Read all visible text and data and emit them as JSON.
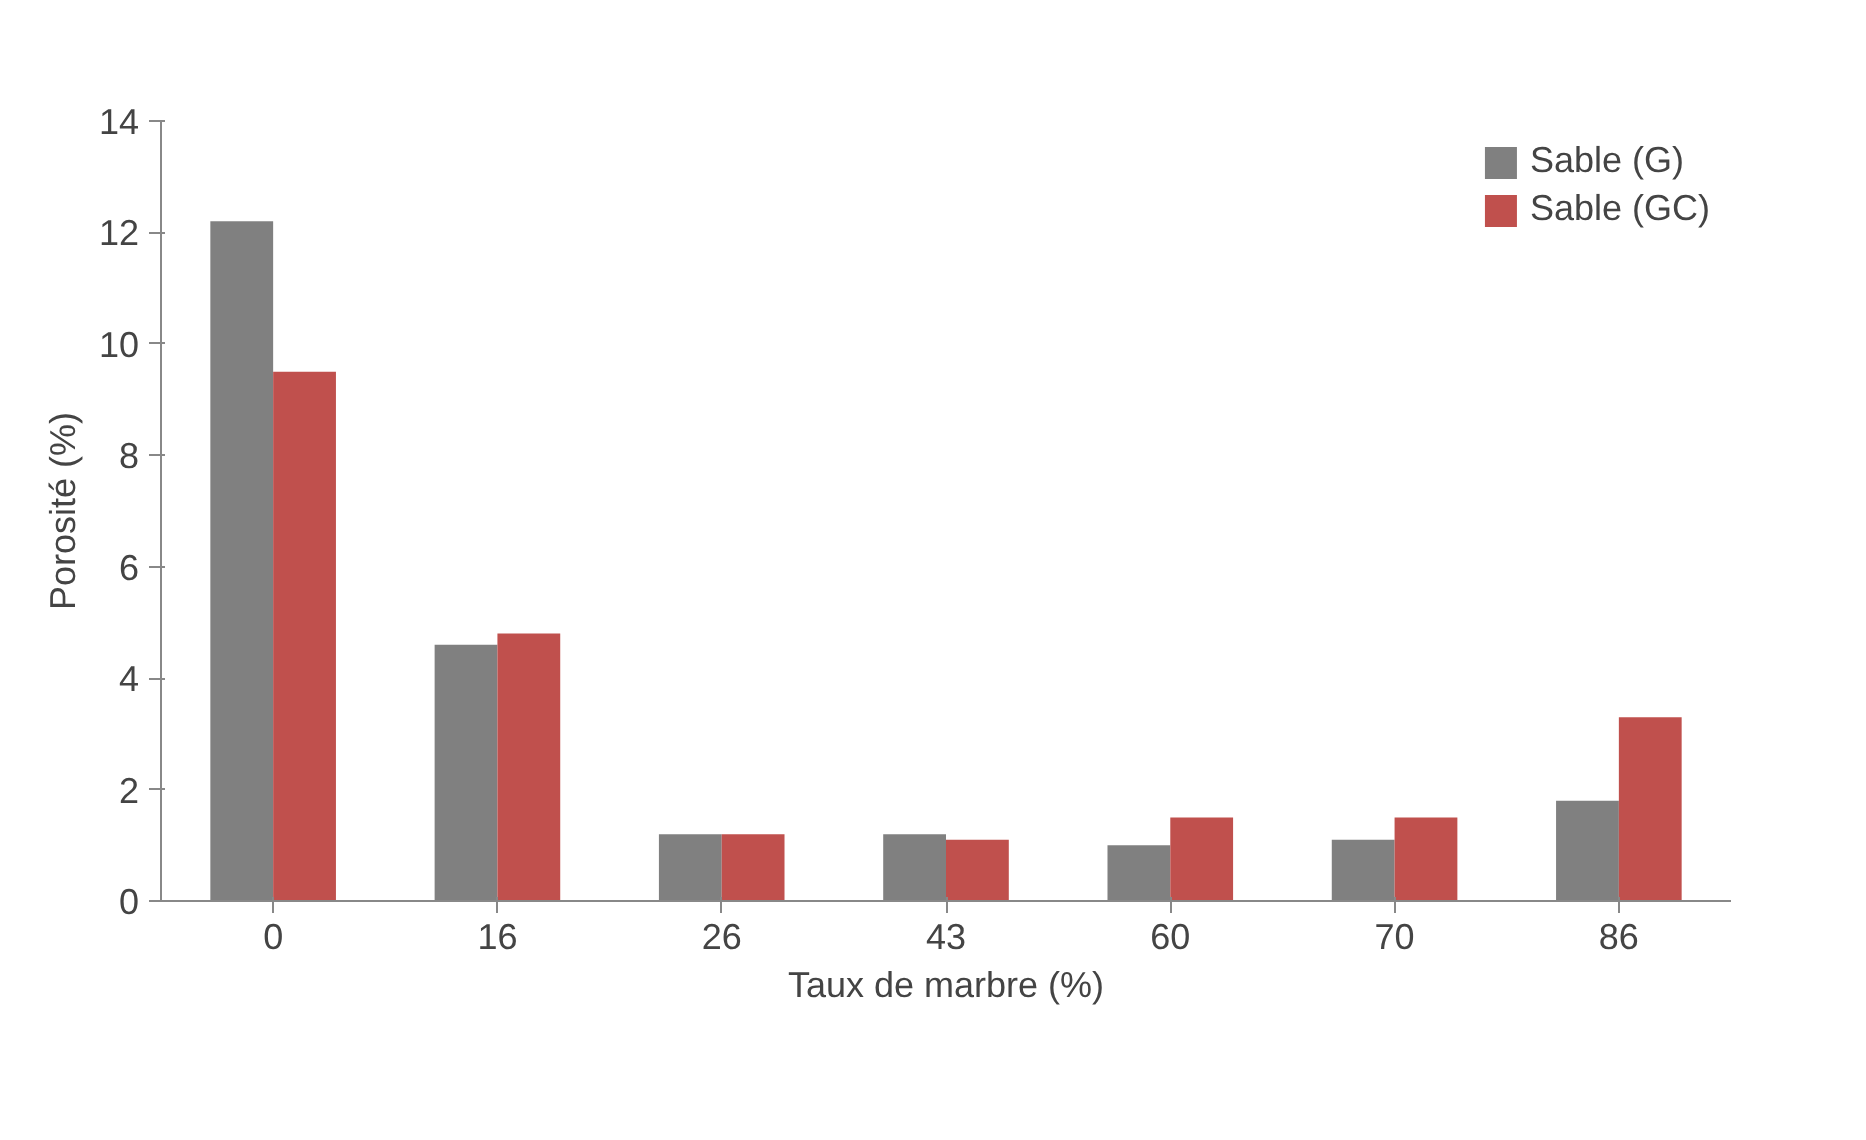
{
  "chart_data": {
    "type": "bar",
    "xlabel": "Taux de marbre (%)",
    "ylabel": "Porosité (%)",
    "categories": [
      "0",
      "16",
      "26",
      "43",
      "60",
      "70",
      "86"
    ],
    "series": [
      {
        "name": "Sable (G)",
        "color": "#808080",
        "values": [
          12.2,
          4.6,
          1.2,
          1.2,
          1.0,
          1.1,
          1.8
        ]
      },
      {
        "name": "Sable (GC)",
        "color": "#c0504d",
        "values": [
          9.5,
          4.8,
          1.2,
          1.1,
          1.5,
          1.5,
          3.3
        ]
      }
    ],
    "ylim": [
      0,
      14
    ],
    "yticks": [
      0,
      2,
      4,
      6,
      8,
      10,
      12,
      14
    ],
    "grid": false,
    "legend": "top right"
  }
}
